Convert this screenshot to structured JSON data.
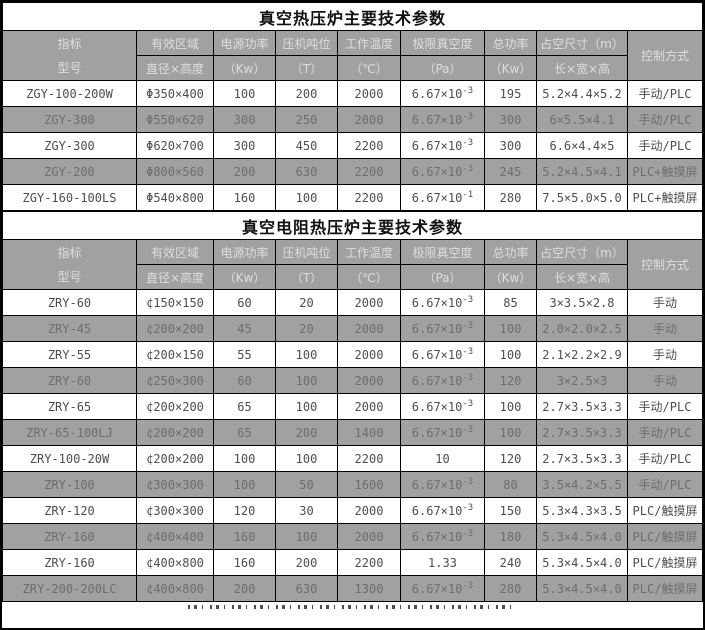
{
  "colors": {
    "header_bg": "#a1a1a1",
    "alt_row_bg": "#a1a1a1",
    "border": "#000000",
    "header_text": "#dedede",
    "row_text": "#4e4e4e",
    "alt_row_text": "#6e6e6e",
    "title_text": "#111111"
  },
  "columns": {
    "col1_top": "指标",
    "col1_bottom": "型号",
    "col2_top": "有效区域",
    "col2_bottom": "直径×高度",
    "col3_top": "电源功率",
    "col3_bottom": "（Kw）",
    "col4_top": "压机吨位",
    "col4_bottom": "（T）",
    "col5_top": "工作温度",
    "col5_bottom": "（℃）",
    "col6_top": "极限真空度",
    "col6_bottom": "（Pa）",
    "col7_top": "总功率",
    "col7_bottom": "（Kw）",
    "col8_top": "占空尺寸（m）",
    "col8_bottom": "长×宽×高",
    "col9": "控制方式"
  },
  "tables": [
    {
      "title": "真空热压炉主要技术参数",
      "rows": [
        {
          "model": "ZGY-100-200W",
          "area": "Φ350×400",
          "power": "100",
          "press": "200",
          "temp": "2000",
          "vacuum": "6.67×10",
          "vacuum_exp": "-3",
          "total": "195",
          "size": "5.2×4.4×5.2",
          "control": "手动/PLC"
        },
        {
          "model": "ZGY-300",
          "area": "Φ550×620",
          "power": "300",
          "press": "250",
          "temp": "2000",
          "vacuum": "6.67×10",
          "vacuum_exp": "-3",
          "total": "300",
          "size": "6×5.5×4.1",
          "control": "手动/PLC"
        },
        {
          "model": "ZGY-300",
          "area": "Φ620×700",
          "power": "300",
          "press": "450",
          "temp": "2200",
          "vacuum": "6.67×10",
          "vacuum_exp": "-3",
          "total": "300",
          "size": "6.6×4.4×5",
          "control": "手动/PLC"
        },
        {
          "model": "ZGY-200",
          "area": "Φ800×560",
          "power": "200",
          "press": "630",
          "temp": "2200",
          "vacuum": "6.67×10",
          "vacuum_exp": "-3",
          "total": "245",
          "size": "5.2×4.5×4.1",
          "control": "PLC+触摸屏"
        },
        {
          "model": "ZGY-160-100LS",
          "area": "Φ540×800",
          "power": "160",
          "press": "100",
          "temp": "2200",
          "vacuum": "6.67×10",
          "vacuum_exp": "-1",
          "total": "280",
          "size": "7.5×5.0×5.0",
          "control": "PLC+触摸屏"
        }
      ]
    },
    {
      "title": "真空电阻热压炉主要技术参数",
      "rows": [
        {
          "model": "ZRY-60",
          "area": "¢150×150",
          "power": "60",
          "press": "20",
          "temp": "2000",
          "vacuum": "6.67×10",
          "vacuum_exp": "-3",
          "total": "85",
          "size": "3×3.5×2.8",
          "control": "手动"
        },
        {
          "model": "ZRY-45",
          "area": "¢200×200",
          "power": "45",
          "press": "20",
          "temp": "2000",
          "vacuum": "6.67×10",
          "vacuum_exp": "-3",
          "total": "100",
          "size": "2.0×2.0×2.5",
          "control": "手动"
        },
        {
          "model": "ZRY-55",
          "area": "¢200×150",
          "power": "55",
          "press": "100",
          "temp": "2000",
          "vacuum": "6.67×10",
          "vacuum_exp": "-3",
          "total": "100",
          "size": "2.1×2.2×2.9",
          "control": "手动"
        },
        {
          "model": "ZRY-60",
          "area": "¢250×300",
          "power": "60",
          "press": "100",
          "temp": "2000",
          "vacuum": "6.67×10",
          "vacuum_exp": "-3",
          "total": "120",
          "size": "3×2.5×3",
          "control": "手动"
        },
        {
          "model": "ZRY-65",
          "area": "¢200×200",
          "power": "65",
          "press": "100",
          "temp": "2000",
          "vacuum": "6.67×10",
          "vacuum_exp": "-3",
          "total": "100",
          "size": "2.7×3.5×3.3",
          "control": "手动/PLC"
        },
        {
          "model": "ZRY-65-100LJ",
          "area": "¢200×200",
          "power": "65",
          "press": "200",
          "temp": "1400",
          "vacuum": "6.67×10",
          "vacuum_exp": "-3",
          "total": "100",
          "size": "2.7×3.5×3.3",
          "control": "手动/PLC"
        },
        {
          "model": "ZRY-100-20W",
          "area": "¢200×200",
          "power": "100",
          "press": "100",
          "temp": "2200",
          "vacuum": "10",
          "vacuum_exp": "",
          "total": "120",
          "size": "2.7×3.5×3.3",
          "control": "手动/PLC"
        },
        {
          "model": "ZRY-100",
          "area": "¢300×300",
          "power": "100",
          "press": "50",
          "temp": "1600",
          "vacuum": "6.67×10",
          "vacuum_exp": "-3",
          "total": "80",
          "size": "3.5×4.2×5.5",
          "control": "手动/PLC"
        },
        {
          "model": "ZRY-120",
          "area": "¢300×300",
          "power": "120",
          "press": "30",
          "temp": "2000",
          "vacuum": "6.67×10",
          "vacuum_exp": "-3",
          "total": "150",
          "size": "5.3×4.3×3.5",
          "control": "PLC/触摸屏"
        },
        {
          "model": "ZRY-160",
          "area": "¢400×400",
          "power": "160",
          "press": "100",
          "temp": "2000",
          "vacuum": "6.67×10",
          "vacuum_exp": "-3",
          "total": "180",
          "size": "5.3×4.5×4.0",
          "control": "PLC/触摸屏"
        },
        {
          "model": "ZRY-160",
          "area": "¢400×800",
          "power": "160",
          "press": "200",
          "temp": "2200",
          "vacuum": "1.33",
          "vacuum_exp": "",
          "total": "240",
          "size": "5.3×4.5×4.0",
          "control": "PLC/触摸屏"
        },
        {
          "model": "ZRY-200-200LC",
          "area": "¢400×800",
          "power": "200",
          "press": "630",
          "temp": "1300",
          "vacuum": "6.67×10",
          "vacuum_exp": "-3",
          "total": "280",
          "size": "5.3×4.5×4.0",
          "control": "PLC/触摸屏"
        }
      ]
    }
  ]
}
